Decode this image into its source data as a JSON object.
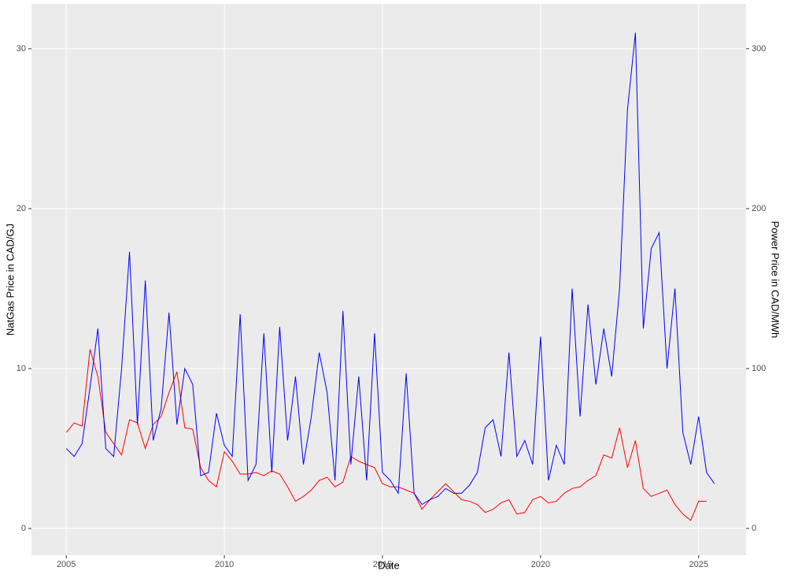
{
  "chart_data": {
    "type": "line",
    "xlabel": "Date",
    "ylabel": "NatGas Price in CAD/GJ",
    "y2label": "Power Price in CAD/MWh",
    "x": [
      2005,
      2005.25,
      2005.5,
      2005.75,
      2006,
      2006.25,
      2006.5,
      2006.75,
      2007,
      2007.25,
      2007.5,
      2007.75,
      2008,
      2008.25,
      2008.5,
      2008.75,
      2009,
      2009.25,
      2009.5,
      2009.75,
      2010,
      2010.25,
      2010.5,
      2010.75,
      2011,
      2011.25,
      2011.5,
      2011.75,
      2012,
      2012.25,
      2012.5,
      2012.75,
      2013,
      2013.25,
      2013.5,
      2013.75,
      2014,
      2014.25,
      2014.5,
      2014.75,
      2015,
      2015.25,
      2015.5,
      2015.75,
      2016,
      2016.25,
      2016.5,
      2016.75,
      2017,
      2017.25,
      2017.5,
      2017.75,
      2018,
      2018.25,
      2018.5,
      2018.75,
      2019,
      2019.25,
      2019.5,
      2019.75,
      2020,
      2020.25,
      2020.5,
      2020.75,
      2021,
      2021.25,
      2021.5,
      2021.75,
      2022,
      2022.25,
      2022.5,
      2022.75,
      2023,
      2023.25,
      2023.5,
      2023.75,
      2024,
      2024.25,
      2024.5,
      2024.75,
      2025,
      2025.25,
      2025.5
    ],
    "series": [
      {
        "name": "NatGas",
        "color": "#ff0000",
        "values": [
          6.0,
          6.6,
          6.4,
          11.2,
          9.5,
          6.0,
          5.3,
          4.6,
          6.8,
          6.6,
          5.0,
          6.5,
          7.0,
          8.5,
          9.8,
          6.3,
          6.2,
          3.8,
          3.0,
          2.6,
          4.8,
          4.2,
          3.4,
          3.4,
          3.5,
          3.3,
          3.6,
          3.4,
          2.6,
          1.7,
          2.0,
          2.4,
          3.0,
          3.2,
          2.6,
          2.9,
          4.5,
          4.2,
          4.0,
          3.8,
          2.8,
          2.6,
          2.6,
          2.4,
          2.2,
          1.2,
          1.8,
          2.3,
          2.8,
          2.3,
          1.8,
          1.7,
          1.5,
          1.0,
          1.2,
          1.6,
          1.8,
          0.9,
          1.0,
          1.8,
          2.0,
          1.6,
          1.7,
          2.2,
          2.5,
          2.6,
          3.0,
          3.3,
          4.6,
          4.4,
          6.3,
          3.8,
          5.5,
          2.5,
          2.0,
          2.2,
          2.4,
          1.5,
          0.9,
          0.5,
          1.7,
          1.7,
          null
        ]
      },
      {
        "name": "Power",
        "color": "#0000ff",
        "axis": "y2",
        "values": [
          50,
          45,
          53,
          88,
          125,
          50,
          45,
          100,
          173,
          65,
          155,
          55,
          75,
          135,
          65,
          100,
          90,
          33,
          35,
          72,
          52,
          45,
          134,
          30,
          40,
          122,
          35,
          126,
          55,
          95,
          40,
          70,
          110,
          85,
          30,
          136,
          40,
          95,
          30,
          122,
          35,
          30,
          22,
          97,
          22,
          15,
          18,
          20,
          25,
          22,
          22,
          27,
          35,
          63,
          68,
          45,
          110,
          45,
          55,
          40,
          120,
          30,
          52,
          40,
          150,
          70,
          140,
          90,
          125,
          95,
          150,
          262,
          310,
          125,
          175,
          185,
          100,
          150,
          60,
          40,
          70,
          35,
          28
        ]
      }
    ],
    "xlim": [
      2003.9,
      2026.5
    ],
    "xticks": [
      2005,
      2010,
      2015,
      2020,
      2025
    ],
    "ylim": [
      -1.67,
      32.8
    ],
    "yticks": [
      0,
      10,
      20,
      30
    ],
    "y2lim": [
      -16.7,
      328
    ],
    "y2ticks": [
      0,
      100,
      200,
      300
    ],
    "grid": true
  }
}
